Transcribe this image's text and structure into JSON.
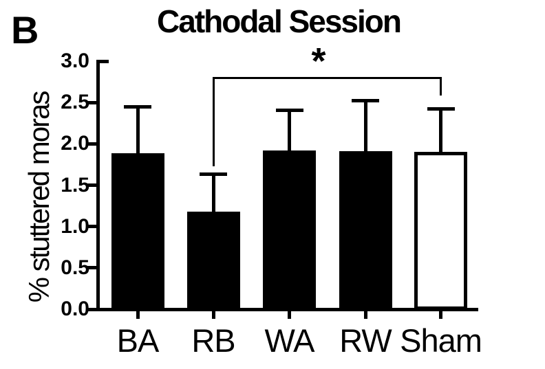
{
  "panel_label": "B",
  "chart_data": {
    "type": "bar",
    "title": "Cathodal Session",
    "xlabel": "",
    "ylabel": "% stuttered moras",
    "categories": [
      "BA",
      "RB",
      "WA",
      "RW",
      "Sham"
    ],
    "values": [
      1.89,
      1.18,
      1.92,
      1.91,
      1.9
    ],
    "error_upper": [
      0.56,
      0.46,
      0.49,
      0.62,
      0.53
    ],
    "bar_fills": [
      "#000000",
      "#000000",
      "#000000",
      "#000000",
      "#ffffff"
    ],
    "ylim": [
      0,
      3
    ],
    "ytick_step": 0.5,
    "ytick_labels": [
      "0.0",
      "0.5",
      "1.0",
      "1.5",
      "2.0",
      "2.5",
      "3.0"
    ],
    "grid": "off",
    "legend": "none",
    "significance": {
      "from": "RB",
      "to": "Sham",
      "label": "*"
    },
    "colors": {
      "ink": "#000000",
      "background": "#ffffff"
    }
  }
}
